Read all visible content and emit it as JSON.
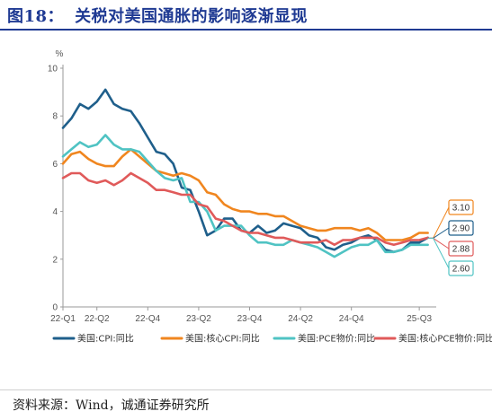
{
  "figure": {
    "number": "图18：",
    "title": "关税对美国通胀的影响逐渐显现"
  },
  "source": "资料来源：Wind，诚通证券研究所",
  "chart_data": {
    "type": "line",
    "ylabel": "%",
    "ylim": [
      0,
      10
    ],
    "yticks": [
      0,
      2,
      4,
      6,
      8,
      10
    ],
    "x_tick_labels": [
      "22-Q1",
      "22-Q2",
      "22-Q4",
      "23-Q2",
      "23-Q4",
      "24-Q2",
      "24-Q4",
      "25-Q3"
    ],
    "x_ticks_index": [
      0,
      4,
      10,
      16,
      22,
      28,
      34,
      42
    ],
    "x_range_index": [
      0,
      44
    ],
    "grid": false,
    "legend_position": "bottom",
    "series": [
      {
        "name": "美国:CPI:同比",
        "color": "#1f5f8b",
        "values": [
          7.5,
          7.9,
          8.5,
          8.3,
          8.6,
          9.1,
          8.5,
          8.3,
          8.2,
          7.7,
          7.1,
          6.5,
          6.4,
          6.0,
          5.0,
          4.9,
          4.0,
          3.0,
          3.2,
          3.7,
          3.7,
          3.2,
          3.1,
          3.4,
          3.1,
          3.2,
          3.5,
          3.4,
          3.3,
          3.0,
          2.9,
          2.5,
          2.4,
          2.6,
          2.7,
          2.9,
          3.0,
          2.8,
          2.4,
          2.3,
          2.4,
          2.7,
          2.7,
          2.9
        ]
      },
      {
        "name": "美国:核心CPI:同比",
        "color": "#f0861f",
        "values": [
          6.0,
          6.4,
          6.5,
          6.2,
          6.0,
          5.9,
          5.9,
          6.3,
          6.6,
          6.3,
          6.0,
          5.7,
          5.6,
          5.5,
          5.6,
          5.5,
          5.3,
          4.8,
          4.7,
          4.3,
          4.1,
          4.0,
          4.0,
          3.9,
          3.9,
          3.8,
          3.8,
          3.6,
          3.4,
          3.3,
          3.2,
          3.2,
          3.3,
          3.3,
          3.3,
          3.2,
          3.3,
          3.1,
          2.8,
          2.8,
          2.8,
          2.9,
          3.1,
          3.1
        ]
      },
      {
        "name": "美国:PCE物价:同比",
        "color": "#4fc3c3",
        "values": [
          6.3,
          6.6,
          6.9,
          6.7,
          6.8,
          7.2,
          6.8,
          6.6,
          6.6,
          6.5,
          6.1,
          5.7,
          5.4,
          5.3,
          5.4,
          4.4,
          4.4,
          4.0,
          3.2,
          3.4,
          3.4,
          3.4,
          3.0,
          2.7,
          2.7,
          2.6,
          2.6,
          2.8,
          2.7,
          2.6,
          2.5,
          2.3,
          2.1,
          2.3,
          2.5,
          2.6,
          2.6,
          2.8,
          2.3,
          2.3,
          2.4,
          2.6,
          2.6,
          2.6
        ]
      },
      {
        "name": "美国:核心PCE物价:同比",
        "color": "#e05a5a",
        "values": [
          5.4,
          5.6,
          5.6,
          5.3,
          5.2,
          5.3,
          5.1,
          5.3,
          5.6,
          5.4,
          5.2,
          4.9,
          4.9,
          4.8,
          4.7,
          4.7,
          4.3,
          4.2,
          3.7,
          3.6,
          3.4,
          3.2,
          3.1,
          3.1,
          3.0,
          2.9,
          2.9,
          2.8,
          2.7,
          2.7,
          2.7,
          2.8,
          2.6,
          2.8,
          2.8,
          2.9,
          2.9,
          2.9,
          2.7,
          2.6,
          2.7,
          2.8,
          2.8,
          2.9
        ]
      }
    ],
    "callouts": [
      {
        "label": "3.10",
        "value": 3.1,
        "color": "#f0861f"
      },
      {
        "label": "2.90",
        "value": 2.9,
        "color": "#1f5f8b"
      },
      {
        "label": "2.88",
        "value": 2.88,
        "color": "#e05a5a"
      },
      {
        "label": "2.60",
        "value": 2.6,
        "color": "#4fc3c3"
      }
    ]
  }
}
